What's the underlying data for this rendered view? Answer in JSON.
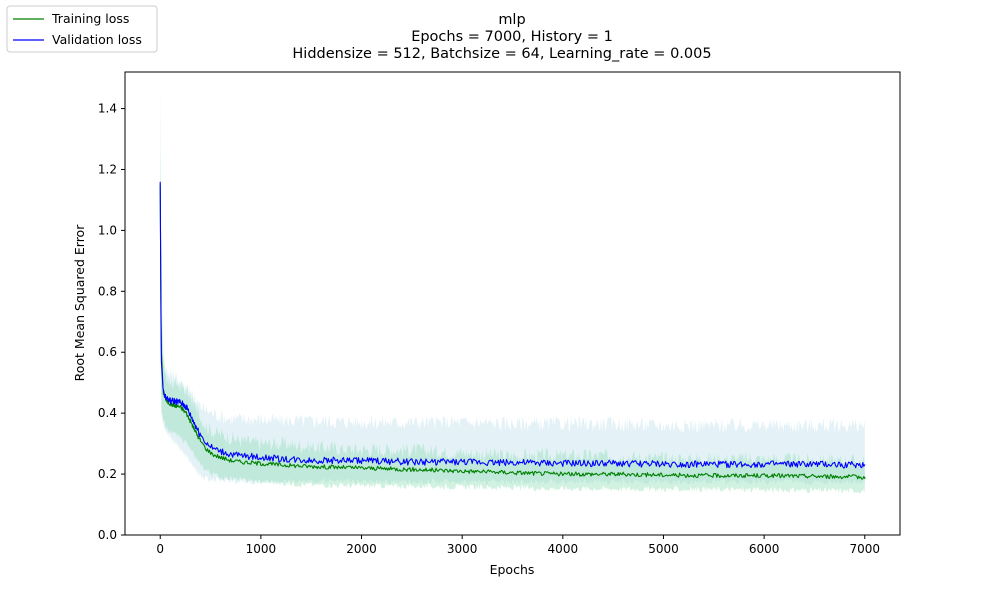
{
  "colors": {
    "training": "#008000",
    "validation": "#0000ff",
    "training_band": "#7fd9a8",
    "validation_band": "#a6d4e6"
  },
  "chart_data": {
    "type": "line",
    "title_lines": [
      "mlp",
      "Epochs = 7000, History = 1",
      "Hiddensize = 512, Batchsize = 64, Learning_rate = 0.005"
    ],
    "xlabel": "Epochs",
    "ylabel": "Root Mean Squared Error",
    "xlim": [
      -350,
      7350
    ],
    "ylim": [
      0,
      1.52
    ],
    "xticks": [
      0,
      1000,
      2000,
      3000,
      4000,
      5000,
      6000,
      7000
    ],
    "yticks": [
      0.0,
      0.2,
      0.4,
      0.6,
      0.8,
      1.0,
      1.2,
      1.4
    ],
    "grid": false,
    "legend_position": "top-left",
    "series": [
      {
        "name": "Training loss",
        "x": [
          0,
          10,
          30,
          60,
          100,
          150,
          200,
          260,
          320,
          380,
          450,
          520,
          600,
          700,
          800,
          1000,
          1200,
          1500,
          2000,
          2500,
          3000,
          3500,
          4000,
          4500,
          5000,
          5500,
          6000,
          6500,
          7000
        ],
        "y": [
          1.15,
          0.62,
          0.47,
          0.44,
          0.43,
          0.425,
          0.42,
          0.4,
          0.36,
          0.32,
          0.285,
          0.265,
          0.255,
          0.245,
          0.24,
          0.235,
          0.23,
          0.225,
          0.22,
          0.215,
          0.21,
          0.205,
          0.2,
          0.2,
          0.197,
          0.195,
          0.195,
          0.193,
          0.19
        ],
        "band_lower": [
          0.9,
          0.42,
          0.38,
          0.35,
          0.34,
          0.33,
          0.32,
          0.3,
          0.27,
          0.24,
          0.215,
          0.2,
          0.19,
          0.185,
          0.18,
          0.175,
          0.17,
          0.165,
          0.162,
          0.16,
          0.158,
          0.155,
          0.153,
          0.152,
          0.15,
          0.15,
          0.148,
          0.147,
          0.145
        ],
        "band_upper": [
          1.45,
          0.9,
          0.6,
          0.52,
          0.5,
          0.5,
          0.49,
          0.47,
          0.44,
          0.4,
          0.36,
          0.34,
          0.33,
          0.32,
          0.31,
          0.3,
          0.3,
          0.29,
          0.28,
          0.28,
          0.27,
          0.26,
          0.26,
          0.26,
          0.25,
          0.25,
          0.25,
          0.245,
          0.24
        ]
      },
      {
        "name": "Validation loss",
        "x": [
          0,
          10,
          30,
          60,
          100,
          150,
          200,
          260,
          320,
          380,
          450,
          520,
          600,
          700,
          800,
          1000,
          1200,
          1500,
          2000,
          2500,
          3000,
          3500,
          4000,
          4500,
          5000,
          5500,
          6000,
          6500,
          7000
        ],
        "y": [
          1.16,
          0.58,
          0.47,
          0.45,
          0.44,
          0.44,
          0.435,
          0.42,
          0.38,
          0.34,
          0.305,
          0.285,
          0.275,
          0.265,
          0.26,
          0.255,
          0.25,
          0.245,
          0.245,
          0.24,
          0.24,
          0.238,
          0.235,
          0.235,
          0.233,
          0.232,
          0.232,
          0.232,
          0.23
        ],
        "band_lower": [
          0.95,
          0.4,
          0.36,
          0.34,
          0.32,
          0.3,
          0.28,
          0.26,
          0.23,
          0.2,
          0.185,
          0.18,
          0.18,
          0.178,
          0.175,
          0.175,
          0.175,
          0.175,
          0.175,
          0.175,
          0.175,
          0.175,
          0.175,
          0.175,
          0.175,
          0.175,
          0.175,
          0.175,
          0.175
        ],
        "band_upper": [
          1.3,
          0.75,
          0.55,
          0.54,
          0.53,
          0.52,
          0.5,
          0.48,
          0.46,
          0.43,
          0.41,
          0.4,
          0.39,
          0.38,
          0.38,
          0.38,
          0.375,
          0.375,
          0.37,
          0.37,
          0.37,
          0.365,
          0.365,
          0.365,
          0.36,
          0.36,
          0.36,
          0.36,
          0.36
        ]
      }
    ]
  }
}
